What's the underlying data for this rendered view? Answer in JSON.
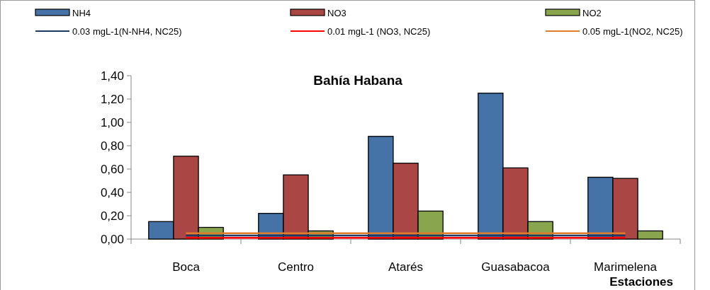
{
  "chart_data": {
    "type": "bar",
    "title": "Bahía Habana",
    "xlabel": "Estaciones",
    "categories": [
      "Boca",
      "Centro",
      "Atarés",
      "Guasabacoa",
      "Marimelena"
    ],
    "series": [
      {
        "name": "NH4",
        "color": "#4572a7",
        "values": [
          0.15,
          0.22,
          0.88,
          1.25,
          0.53
        ]
      },
      {
        "name": "NO3",
        "color": "#aa4643",
        "values": [
          0.71,
          0.55,
          0.65,
          0.61,
          0.52
        ]
      },
      {
        "name": "NO2",
        "color": "#89a54e",
        "values": [
          0.1,
          0.07,
          0.24,
          0.15,
          0.07
        ]
      },
      {
        "name": "0.03 mgL-1(N-NH4, NC25)",
        "type": "line",
        "color": "#1f3864",
        "values": [
          0.03,
          0.03,
          0.03,
          0.03,
          0.03
        ]
      },
      {
        "name": "0.01 mgL-1 (NO3, NC25)",
        "type": "line",
        "color": "#ff0000",
        "values": [
          0.01,
          0.01,
          0.01,
          0.01,
          0.01
        ]
      },
      {
        "name": "0.05 mgL-1(NO2, NC25)",
        "type": "line",
        "color": "#e07b2a",
        "values": [
          0.05,
          0.05,
          0.05,
          0.05,
          0.05
        ]
      }
    ],
    "ylim": [
      0,
      1.4
    ],
    "yticks": [
      {
        "value": 0,
        "label": "0,00"
      },
      {
        "value": 0.2,
        "label": "0,20"
      },
      {
        "value": 0.4,
        "label": "0,40"
      },
      {
        "value": 0.6,
        "label": "0,60"
      },
      {
        "value": 0.8,
        "label": "0,80"
      },
      {
        "value": 1.0,
        "label": "1,00"
      },
      {
        "value": 1.2,
        "label": "1,20"
      },
      {
        "value": 1.4,
        "label": "1,40"
      }
    ],
    "grid": false,
    "legend": "top"
  }
}
